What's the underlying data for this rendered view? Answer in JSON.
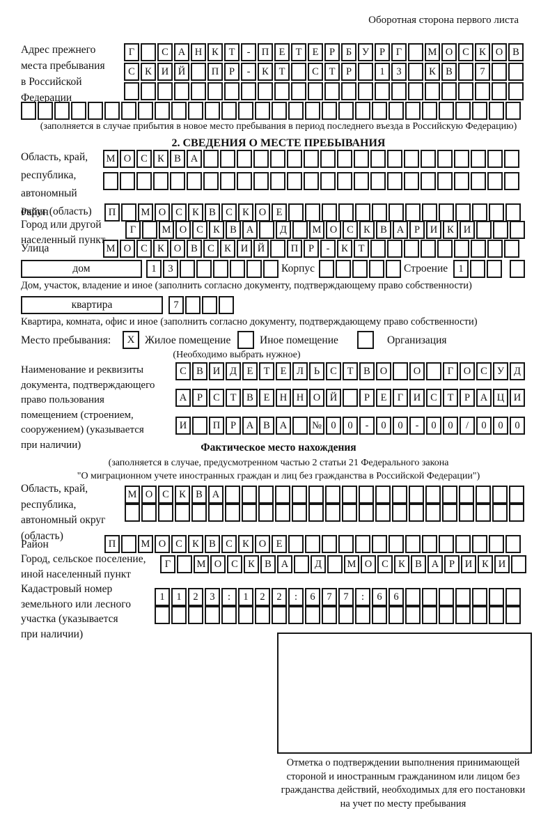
{
  "page_header": "Оборотная сторона первого листа",
  "section1": {
    "label_lines": [
      "Адрес прежнего",
      "места пребывания",
      "в Российской",
      "Федерации"
    ],
    "rows": [
      {
        "cells": [
          "Г",
          "",
          "С",
          "А",
          "Н",
          "К",
          "Т",
          "-",
          "П",
          "Е",
          "Т",
          "Е",
          "Р",
          "Б",
          "У",
          "Р",
          "Г",
          "",
          "М",
          "О",
          "С",
          "К",
          "О",
          "В"
        ],
        "total": 24
      },
      {
        "cells": [
          "С",
          "К",
          "И",
          "Й",
          "",
          "П",
          "Р",
          "-",
          "К",
          "Т",
          "",
          "С",
          "Т",
          "Р",
          "",
          "1",
          "3",
          "",
          "К",
          "В",
          "",
          "7",
          "",
          ""
        ],
        "total": 24
      },
      {
        "cells": [],
        "total": 24
      }
    ],
    "full_row": {
      "cells": [],
      "total": 30
    },
    "caption": "(заполняется в случае прибытия в новое место пребывания в период последнего въезда в Российскую Федерацию)"
  },
  "section2": {
    "title": "2. СВЕДЕНИЯ О МЕСТЕ ПРЕБЫВАНИЯ",
    "oblast": {
      "label_lines": [
        "Область, край,",
        "республика,",
        "автономный",
        "округ (область)"
      ],
      "rows": [
        {
          "cells": [
            "М",
            "О",
            "С",
            "К",
            "В",
            "А"
          ],
          "total": 25
        },
        {
          "cells": [],
          "total": 25
        }
      ]
    },
    "rayon": {
      "label": "Район",
      "row": {
        "cells": [
          "П",
          "",
          "М",
          "О",
          "С",
          "К",
          "В",
          "С",
          "К",
          "О",
          "Е"
        ],
        "total": 25
      }
    },
    "gorod": {
      "label_lines": [
        "Город или другой",
        "населенный пункт"
      ],
      "row": {
        "cells": [
          "Г",
          "",
          "М",
          "О",
          "С",
          "К",
          "В",
          "А",
          "",
          "Д",
          "",
          "М",
          "О",
          "С",
          "К",
          "В",
          "А",
          "Р",
          "И",
          "К",
          "И"
        ],
        "total": 24
      }
    },
    "ulitsa": {
      "label": "Улица",
      "row": {
        "cells": [
          "М",
          "О",
          "С",
          "К",
          "О",
          "В",
          "С",
          "К",
          "И",
          "Й",
          "",
          "П",
          "Р",
          "-",
          "К",
          "Т"
        ],
        "total": 25
      }
    },
    "dom": {
      "box_label": "дом",
      "row1": {
        "cells": [
          "1",
          "3"
        ],
        "total": 8
      },
      "korpus_label": "Корпус",
      "row2": {
        "cells": [],
        "total": 5
      },
      "stroenie_label": "Строение",
      "row3": {
        "cells": [
          "1"
        ],
        "total": 3
      },
      "row4": {
        "cells": [],
        "total": 1
      },
      "caption": "Дом, участок, владение и иное (заполнить согласно документу, подтверждающему право собственности)"
    },
    "kvartira": {
      "box_label": "квартира",
      "row": {
        "cells": [
          "7"
        ],
        "total": 4
      },
      "caption": "Квартира, комната, офис и иное (заполнить согласно документу, подтверждающему право собственности)"
    },
    "mesto": {
      "label": "Место пребывания:",
      "options": [
        {
          "mark": "X",
          "label": "Жилое помещение"
        },
        {
          "mark": "",
          "label": "Иное помещение"
        },
        {
          "mark": "",
          "label": "Организация"
        }
      ],
      "note": "(Необходимо выбрать нужное)"
    },
    "document": {
      "label_lines": [
        "Наименование и реквизиты",
        "документа, подтверждающего",
        "право пользования",
        "помещением (строением,",
        "сооружением) (указывается",
        "при наличии)"
      ],
      "rows": [
        {
          "cells": [
            "С",
            "В",
            "И",
            "Д",
            "Е",
            "Т",
            "Е",
            "Л",
            "Ь",
            "С",
            "Т",
            "В",
            "О",
            "",
            "О",
            "",
            "Г",
            "О",
            "С",
            "У",
            "Д"
          ],
          "total": 21
        },
        {
          "cells": [
            "А",
            "Р",
            "С",
            "Т",
            "В",
            "Е",
            "Н",
            "Н",
            "О",
            "Й",
            "",
            "Р",
            "Е",
            "Г",
            "И",
            "С",
            "Т",
            "Р",
            "А",
            "Ц",
            "И"
          ],
          "total": 21
        },
        {
          "cells": [
            "И",
            "",
            "П",
            "Р",
            "А",
            "В",
            "А",
            "",
            "№",
            "0",
            "0",
            "-",
            "0",
            "0",
            "-",
            "0",
            "0",
            "/",
            "0",
            "0",
            "0"
          ],
          "total": 21
        }
      ]
    }
  },
  "fact": {
    "title": "Фактическое место нахождения",
    "caption_lines": [
      "(заполняется в случае, предусмотренном частью 2 статьи 21 Федерального закона",
      "\"О миграционном учете иностранных граждан и лиц без гражданства в Российской Федерации\")"
    ],
    "oblast": {
      "label_lines": [
        "Область, край,",
        "республика,",
        "автономный округ",
        "(область)"
      ],
      "rows": [
        {
          "cells": [
            "М",
            "О",
            "С",
            "К",
            "В",
            "А"
          ],
          "total": 24
        },
        {
          "cells": [],
          "total": 24
        }
      ]
    },
    "rayon": {
      "label": "Район",
      "row": {
        "cells": [
          "П",
          "",
          "М",
          "О",
          "С",
          "К",
          "В",
          "С",
          "К",
          "О",
          "Е"
        ],
        "total": 25
      }
    },
    "gorod": {
      "label_lines": [
        "Город, сельское поселение,",
        "иной населенный пункт"
      ],
      "row": {
        "cells": [
          "Г",
          "",
          "М",
          "О",
          "С",
          "К",
          "В",
          "А",
          "",
          "Д",
          "",
          "М",
          "О",
          "С",
          "К",
          "В",
          "А",
          "Р",
          "И",
          "К",
          "И"
        ],
        "total": 22
      }
    },
    "kadastr": {
      "label_lines": [
        "Кадастровый номер",
        "земельного или лесного",
        "участка (указывается",
        "при наличии)"
      ],
      "rows": [
        {
          "cells": [
            "1",
            "1",
            "2",
            "3",
            ":",
            "1",
            "2",
            "2",
            ":",
            "6",
            "7",
            "7",
            ":",
            "6",
            "6"
          ],
          "total": 22
        },
        {
          "cells": [],
          "total": 22
        }
      ]
    },
    "stamp_caption_lines": [
      "Отметка о подтверждении выполнения принимающей",
      "стороной и иностранным гражданином или лицом без",
      "гражданства действий, необходимых для его постановки",
      "на учет по месту пребывания"
    ]
  }
}
